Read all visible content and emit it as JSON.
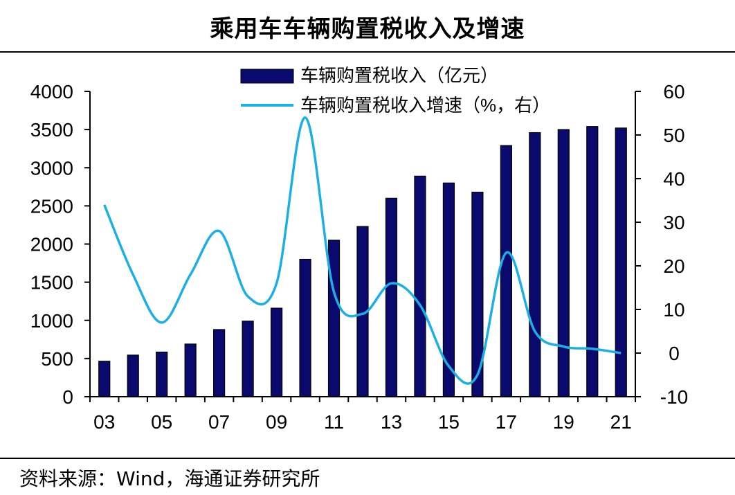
{
  "title": "乘用车车辆购置税收入及增速",
  "source": "资料来源：Wind，海通证券研究所",
  "chart_data": {
    "type": "bar",
    "categories": [
      "03",
      "04",
      "05",
      "06",
      "07",
      "08",
      "09",
      "10",
      "11",
      "12",
      "13",
      "14",
      "15",
      "16",
      "17",
      "18",
      "19",
      "20",
      "21"
    ],
    "x_tick_labels": [
      "03",
      "05",
      "07",
      "09",
      "11",
      "13",
      "15",
      "17",
      "19",
      "21"
    ],
    "series": [
      {
        "name": "车辆购置税收入（亿元）",
        "type": "bar",
        "axis": "left",
        "color": "#0a0a6e",
        "values": [
          465,
          545,
          585,
          690,
          880,
          990,
          1160,
          1800,
          2050,
          2230,
          2600,
          2890,
          2800,
          2680,
          3290,
          3460,
          3500,
          3540,
          3520
        ]
      },
      {
        "name": "车辆购置税收入增速（%，右）",
        "type": "line",
        "axis": "right",
        "color": "#1ab0e6",
        "values": [
          34,
          18,
          7,
          18,
          28,
          13,
          16,
          54,
          14,
          9,
          16,
          11,
          -3,
          -5,
          23,
          5,
          1.5,
          1,
          0
        ]
      }
    ],
    "y_left": {
      "min": 0,
      "max": 4000,
      "ticks": [
        0,
        500,
        1000,
        1500,
        2000,
        2500,
        3000,
        3500,
        4000
      ]
    },
    "y_right": {
      "min": -10,
      "max": 60,
      "ticks": [
        -10,
        0,
        10,
        20,
        30,
        40,
        50,
        60
      ]
    },
    "legend_position": "top-center",
    "grid": false
  }
}
